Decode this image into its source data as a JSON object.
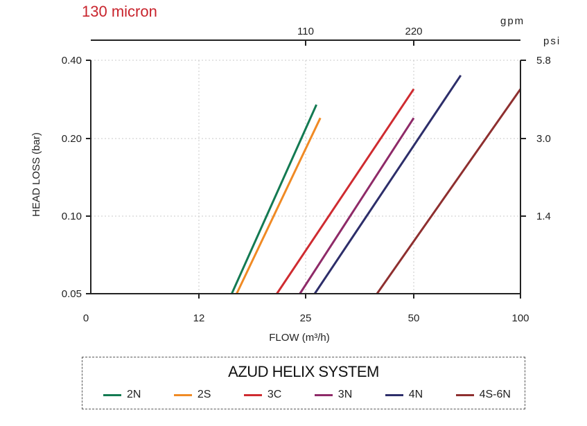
{
  "chart_data": {
    "type": "line",
    "title": "130 micron",
    "xlabel": "FLOW (m³/h)",
    "ylabel": "HEAD LOSS  (bar)",
    "x_ticks": [
      "0",
      "12",
      "25",
      "50",
      "100"
    ],
    "y_ticks": [
      "0.05",
      "0.10",
      "0.20",
      "0.40"
    ],
    "x_top_unit": "gpm",
    "x_top_ticks": [
      "110",
      "220"
    ],
    "y_right_unit": "psi",
    "y_right_ticks": [
      "1.4",
      "3.0",
      "5.8"
    ],
    "grid": true,
    "legend_title": "AZUD HELIX SYSTEM",
    "series": [
      {
        "name": "2N",
        "color": "#137a52",
        "points": [
          [
            16.0,
            0.05
          ],
          [
            27.5,
            0.27
          ]
        ]
      },
      {
        "name": "2S",
        "color": "#f08a24",
        "points": [
          [
            16.6,
            0.05
          ],
          [
            28.4,
            0.24
          ]
        ]
      },
      {
        "name": "3C",
        "color": "#cf2b30",
        "points": [
          [
            21.5,
            0.05
          ],
          [
            50.0,
            0.31
          ]
        ]
      },
      {
        "name": "3N",
        "color": "#8e2a68",
        "points": [
          [
            24.3,
            0.05
          ],
          [
            50.0,
            0.24
          ]
        ]
      },
      {
        "name": "4N",
        "color": "#2d2e6a",
        "points": [
          [
            27.1,
            0.05
          ],
          [
            72.0,
            0.35
          ]
        ]
      },
      {
        "name": "4S-6N",
        "color": "#8e2f2f",
        "points": [
          [
            41.5,
            0.05
          ],
          [
            100.0,
            0.31
          ]
        ]
      }
    ]
  }
}
